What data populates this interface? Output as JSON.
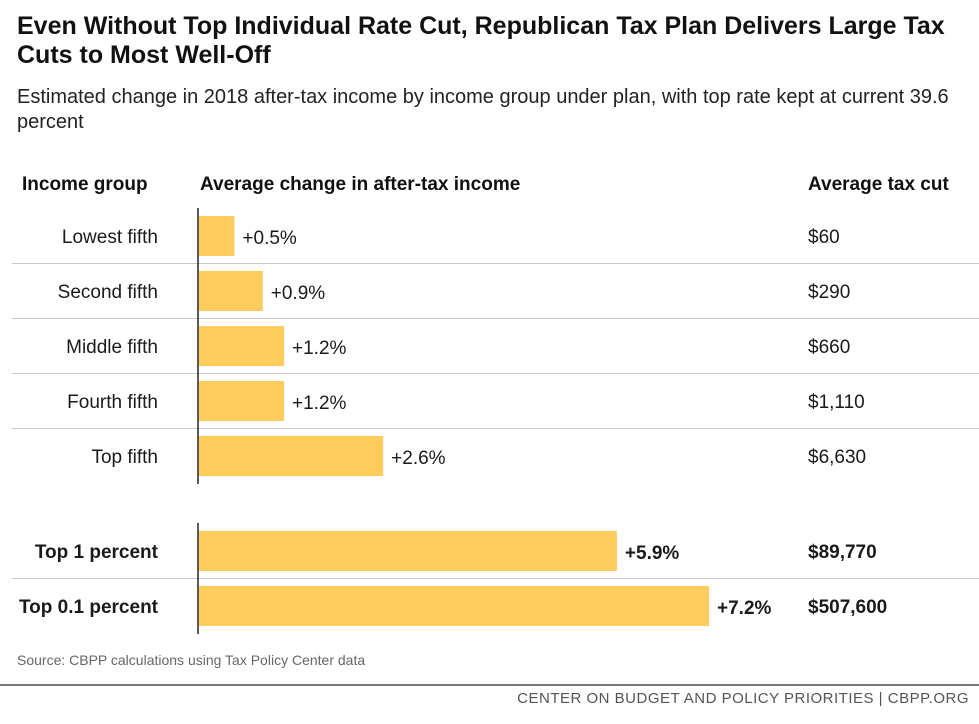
{
  "title": "Even Without Top Individual Rate Cut, Republican Tax Plan Delivers Large Tax Cuts to Most Well-Off",
  "subtitle": "Estimated change in 2018 after-tax income by income group under plan, with top rate kept at current 39.6 percent",
  "headers": {
    "group": "Income group",
    "change": "Average change in after-tax income",
    "cut": "Average tax cut"
  },
  "source": "Source: CBPP calculations using Tax Policy Center data",
  "footer": "CENTER ON BUDGET AND POLICY PRIORITIES | CBPP.ORG",
  "colors": {
    "bar": "#FDCC5C",
    "grid": "#c8c8c8",
    "axis": "#222222"
  },
  "chart_data": {
    "type": "bar",
    "orientation": "horizontal",
    "xlim": [
      0,
      7.2
    ],
    "unit": "percent change in after-tax income",
    "categories": [
      "Lowest fifth",
      "Second fifth",
      "Middle fifth",
      "Fourth fifth",
      "Top fifth",
      "Top 1 percent",
      "Top 0.1 percent"
    ],
    "values": [
      0.5,
      0.9,
      1.2,
      1.2,
      2.6,
      5.9,
      7.2
    ],
    "value_labels": [
      "+0.5%",
      "+0.9%",
      "+1.2%",
      "+1.2%",
      "+2.6%",
      "+5.9%",
      "+7.2%"
    ],
    "tax_cut": [
      "$60",
      "$290",
      "$660",
      "$1,110",
      "$6,630",
      "$89,770",
      "$507,600"
    ],
    "emphasis": [
      false,
      false,
      false,
      false,
      false,
      true,
      true
    ]
  }
}
